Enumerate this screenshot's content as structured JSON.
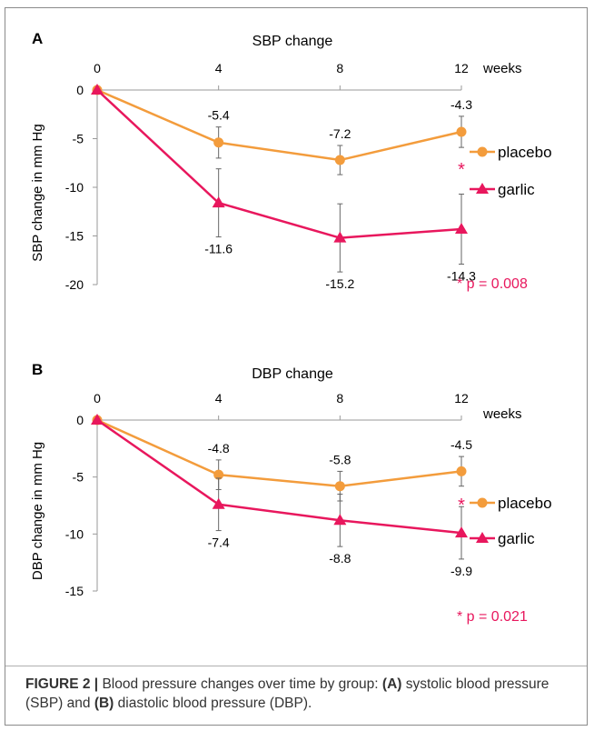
{
  "colors": {
    "placebo": "#F39C3C",
    "garlic": "#E8175D",
    "axis": "#999999",
    "text": "#000000",
    "errorbar": "#666666"
  },
  "chart_data": [
    {
      "type": "line",
      "panel": "A",
      "title": "SBP change",
      "ylabel": "SBP change in mm Hg",
      "xunit": "weeks",
      "x": [
        0,
        4,
        8,
        12
      ],
      "ylim": [
        -20,
        0
      ],
      "yticks": [
        0,
        -5,
        -10,
        -15,
        -20
      ],
      "grid": false,
      "legend_position": "right",
      "series": [
        {
          "name": "placebo",
          "marker": "circle",
          "values": [
            0,
            -5.4,
            -7.2,
            -4.3
          ],
          "labels": [
            "",
            "-5.4",
            "-7.2",
            "-4.3"
          ],
          "err": [
            0,
            1.6,
            1.5,
            1.6
          ]
        },
        {
          "name": "garlic",
          "marker": "triangle",
          "values": [
            0,
            -11.6,
            -15.2,
            -14.3
          ],
          "labels": [
            "",
            "-11.6",
            "-15.2",
            "-14.3"
          ],
          "err": [
            0,
            3.5,
            3.5,
            3.6
          ]
        }
      ],
      "significance_mark": "*",
      "pvalue": "* p = 0.008"
    },
    {
      "type": "line",
      "panel": "B",
      "title": "DBP change",
      "ylabel": "DBP change in mm Hg",
      "xunit": "weeks",
      "x": [
        0,
        4,
        8,
        12
      ],
      "ylim": [
        -15,
        0
      ],
      "yticks": [
        0,
        -5,
        -10,
        -15
      ],
      "grid": false,
      "legend_position": "right",
      "series": [
        {
          "name": "placebo",
          "marker": "circle",
          "values": [
            0,
            -4.8,
            -5.8,
            -4.5
          ],
          "labels": [
            "",
            "-4.8",
            "-5.8",
            "-4.5"
          ],
          "err": [
            0,
            1.3,
            1.3,
            1.3
          ]
        },
        {
          "name": "garlic",
          "marker": "triangle",
          "values": [
            0,
            -7.4,
            -8.8,
            -9.9
          ],
          "labels": [
            "",
            "-7.4",
            "-8.8",
            "-9.9"
          ],
          "err": [
            0,
            2.3,
            2.3,
            2.3
          ]
        }
      ],
      "significance_mark": "*",
      "pvalue": "* p = 0.021"
    }
  ],
  "caption": {
    "label": "FIGURE 2 |",
    "text_1": " Blood pressure changes over time by group: ",
    "a": "(A)",
    "text_2": " systolic blood pressure (SBP) and ",
    "b": "(B)",
    "text_3": " diastolic blood pressure (DBP)."
  }
}
